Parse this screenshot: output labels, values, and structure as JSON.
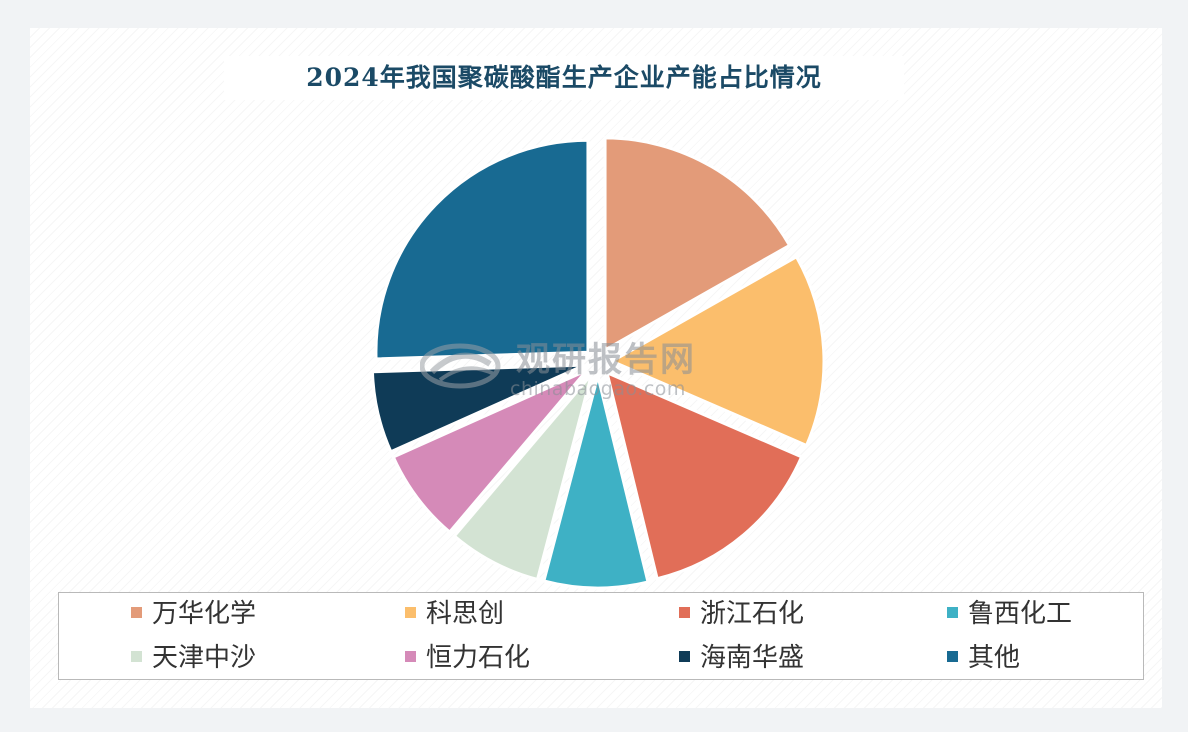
{
  "chart_data": {
    "type": "pie",
    "title": "2024年我国聚碳酸酯生产企业产能占比情况",
    "exploded": true,
    "legend_position": "bottom",
    "slices": [
      {
        "label": "万华化学",
        "value": 16.8,
        "color": "#e39b79"
      },
      {
        "label": "科思创",
        "value": 14.7,
        "color": "#fbbe6c"
      },
      {
        "label": "浙江石化",
        "value": 14.7,
        "color": "#e16e58"
      },
      {
        "label": "鲁西化工",
        "value": 7.9,
        "color": "#3eb1c5"
      },
      {
        "label": "天津中沙",
        "value": 7.1,
        "color": "#d3e3d3"
      },
      {
        "label": "恒力石化",
        "value": 7.1,
        "color": "#d58ab8"
      },
      {
        "label": "海南华盛",
        "value": 6.2,
        "color": "#0f3b57"
      },
      {
        "label": "其他",
        "value": 25.5,
        "color": "#186a92"
      }
    ]
  },
  "watermark": {
    "name": "观研报告网",
    "url": "chinabaogao.com"
  }
}
